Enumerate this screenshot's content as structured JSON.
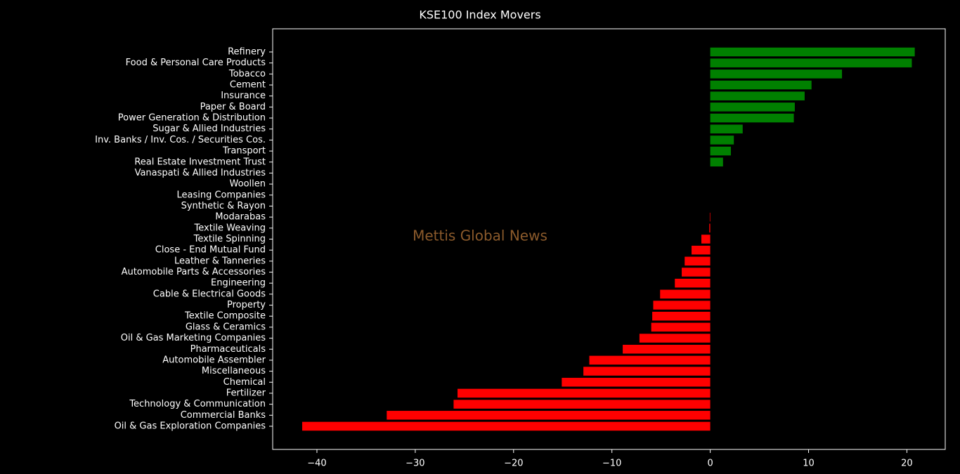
{
  "chart_data": {
    "type": "barh",
    "title": "KSE100 Index Movers",
    "annotation": "Mettis Global News",
    "categories": [
      "Refinery",
      "Food & Personal Care Products",
      "Tobacco",
      "Cement",
      "Insurance",
      "Paper & Board",
      "Power Generation & Distribution",
      "Sugar & Allied Industries",
      "Inv. Banks / Inv. Cos. / Securities Cos.",
      "Transport",
      "Real Estate Investment Trust",
      "Vanaspati & Allied Industries",
      "Woollen",
      "Leasing Companies",
      "Synthetic & Rayon",
      "Modarabas",
      "Textile Weaving",
      "Textile Spinning",
      "Close - End Mutual Fund",
      "Leather & Tanneries",
      "Automobile Parts & Accessories",
      "Engineering",
      "Cable & Electrical Goods",
      "Property",
      "Textile Composite",
      "Glass & Ceramics",
      "Oil & Gas Marketing Companies",
      "Pharmaceuticals",
      "Automobile Assembler",
      "Miscellaneous",
      "Chemical",
      "Fertilizer",
      "Technology & Communication",
      "Commercial Banks",
      "Oil & Gas Exploration Companies"
    ],
    "values": [
      20.8,
      20.5,
      13.4,
      10.3,
      9.6,
      8.6,
      8.5,
      3.3,
      2.4,
      2.1,
      1.3,
      0,
      0,
      0,
      0,
      -0.05,
      -0.1,
      -0.9,
      -1.9,
      -2.6,
      -2.9,
      -3.6,
      -5.1,
      -5.8,
      -5.9,
      -6.0,
      -7.2,
      -8.9,
      -12.3,
      -12.9,
      -15.1,
      -25.7,
      -26.1,
      -32.9,
      -41.5
    ],
    "positive_color": "#008000",
    "negative_color": "#ff0000",
    "xlim": [
      -44.5,
      23.9
    ],
    "xticks": [
      {
        "value": -40,
        "label": "−40"
      },
      {
        "value": -30,
        "label": "−30"
      },
      {
        "value": -20,
        "label": "−20"
      },
      {
        "value": -10,
        "label": "−10"
      },
      0,
      10,
      20
    ],
    "grid": false
  }
}
